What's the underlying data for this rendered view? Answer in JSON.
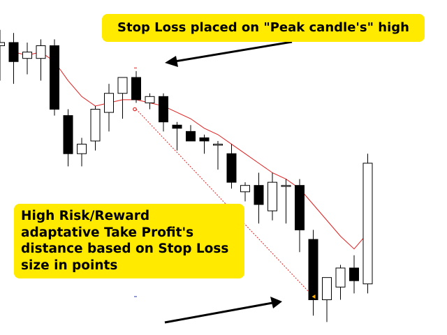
{
  "colors": {
    "background": "#ffffff",
    "bull_candle": "#ffffff",
    "bear_candle": "#000000",
    "wick": "#000000",
    "moving_average": "#e02020",
    "tp_projection": "#e02020",
    "marker": "#e02020",
    "callout_bg": "#ffea00",
    "callout_text": "#000000",
    "arrow": "#000000"
  },
  "annotations": {
    "stop_loss": "Stop Loss placed on \"Peak candle's\" high",
    "take_profit_lines": [
      "High Risk/Reward",
      "adaptative Take Profit's",
      "distance based on Stop Loss",
      "size in points"
    ]
  },
  "chart_data": {
    "type": "candlestick",
    "title": "",
    "xlabel": "",
    "ylabel": "",
    "ylim": [
      0,
      100
    ],
    "grid": false,
    "legend": "none",
    "candles": [
      {
        "o": 90,
        "h": 95,
        "l": 79,
        "c": 91
      },
      {
        "o": 91,
        "h": 94,
        "l": 78,
        "c": 85
      },
      {
        "o": 86,
        "h": 91,
        "l": 81,
        "c": 88
      },
      {
        "o": 86,
        "h": 92,
        "l": 79,
        "c": 90
      },
      {
        "o": 90,
        "h": 92,
        "l": 68,
        "c": 70
      },
      {
        "o": 68,
        "h": 70,
        "l": 52,
        "c": 56
      },
      {
        "o": 56,
        "h": 61,
        "l": 52,
        "c": 59
      },
      {
        "o": 60,
        "h": 71,
        "l": 57,
        "c": 70
      },
      {
        "o": 69,
        "h": 78,
        "l": 63,
        "c": 75
      },
      {
        "o": 75,
        "h": 80,
        "l": 67,
        "c": 80
      },
      {
        "o": 80,
        "h": 82,
        "l": 72,
        "c": 73
      },
      {
        "o": 72,
        "h": 75,
        "l": 70,
        "c": 74
      },
      {
        "o": 74,
        "h": 75,
        "l": 63,
        "c": 66
      },
      {
        "o": 65,
        "h": 66,
        "l": 57,
        "c": 64
      },
      {
        "o": 63,
        "h": 65,
        "l": 60,
        "c": 60
      },
      {
        "o": 61,
        "h": 62,
        "l": 56,
        "c": 60
      },
      {
        "o": 59,
        "h": 60,
        "l": 51,
        "c": 59
      },
      {
        "o": 56,
        "h": 59,
        "l": 45,
        "c": 47
      },
      {
        "o": 44,
        "h": 47,
        "l": 41,
        "c": 46
      },
      {
        "o": 46,
        "h": 50,
        "l": 34,
        "c": 40
      },
      {
        "o": 38,
        "h": 50,
        "l": 35,
        "c": 47
      },
      {
        "o": 46,
        "h": 48,
        "l": 34,
        "c": 46
      },
      {
        "o": 46,
        "h": 48,
        "l": 25,
        "c": 32
      },
      {
        "o": 29,
        "h": 32,
        "l": 5,
        "c": 10
      },
      {
        "o": 10,
        "h": 17,
        "l": 3,
        "c": 17
      },
      {
        "o": 14,
        "h": 21,
        "l": 10,
        "c": 20
      },
      {
        "o": 20,
        "h": 24,
        "l": 12,
        "c": 16
      },
      {
        "o": 15,
        "h": 56,
        "l": 12,
        "c": 53
      }
    ],
    "moving_average": [
      null,
      88,
      87,
      88,
      85,
      79,
      74,
      71,
      72,
      73,
      73,
      72,
      71,
      69,
      67,
      64,
      62,
      59,
      56,
      53,
      50,
      48,
      45,
      40,
      35,
      30,
      26,
      31
    ],
    "stop_loss_level": 83,
    "take_profit_level": 11,
    "stop_loss_candle_index": 10,
    "entry_level": 70,
    "entry_candle_index": 10,
    "exit_candle_index": 23
  }
}
